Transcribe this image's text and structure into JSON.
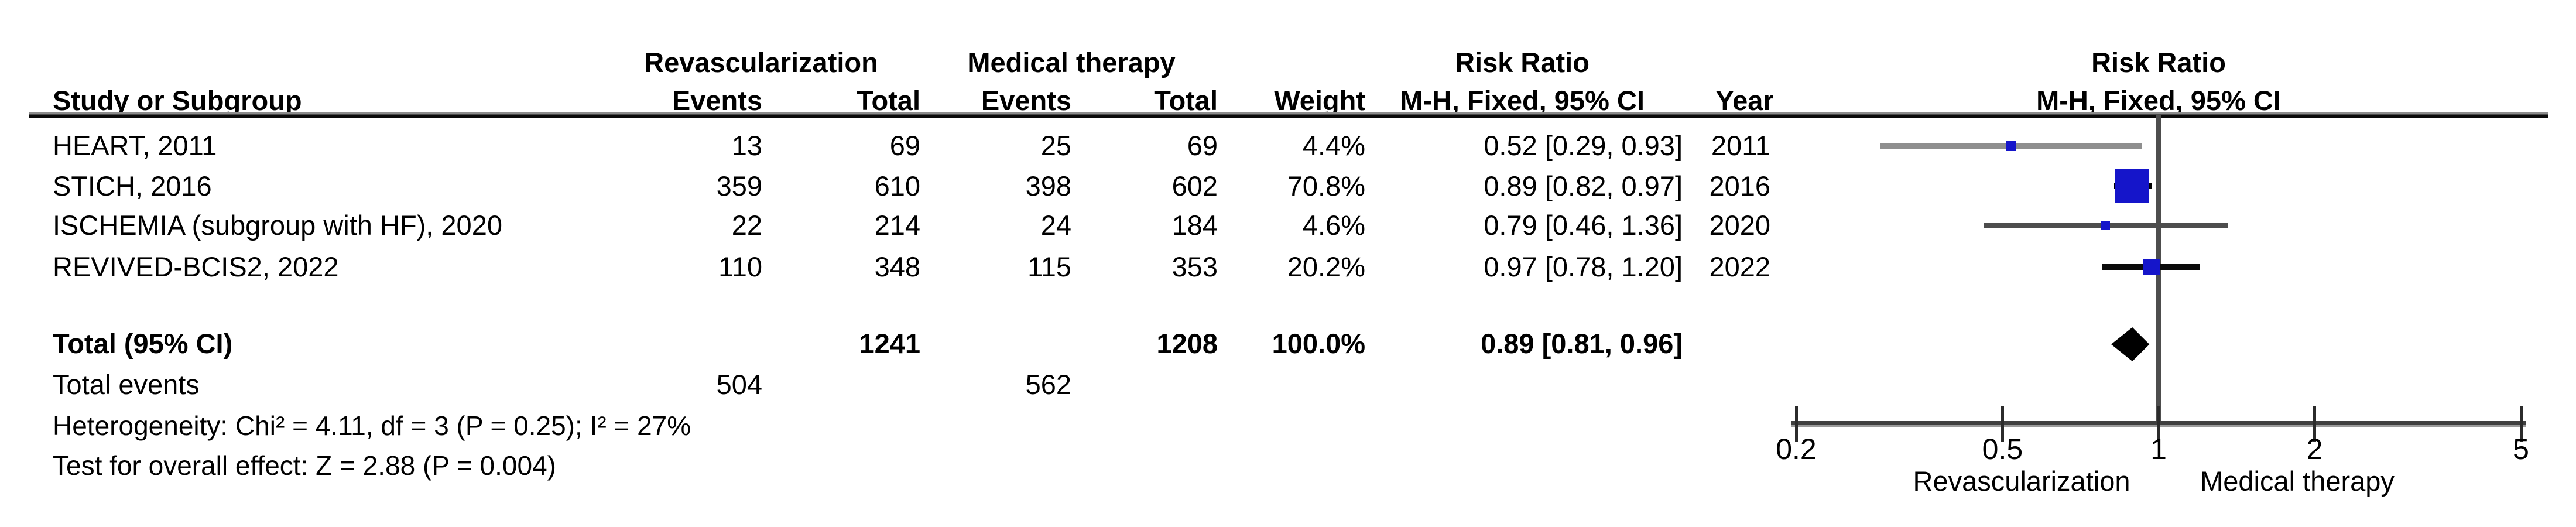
{
  "table": {
    "group_headers": {
      "revascularization": "Revascularization",
      "medical_therapy": "Medical therapy",
      "risk_ratio_table": "Risk Ratio",
      "risk_ratio_plot": "Risk Ratio"
    },
    "column_headers": {
      "study": "Study or Subgroup",
      "rev_events": "Events",
      "rev_total": "Total",
      "med_events": "Events",
      "med_total": "Total",
      "weight": "Weight",
      "method_table": "M-H, Fixed, 95% CI",
      "year": "Year",
      "method_plot": "M-H, Fixed, 95% CI"
    }
  },
  "chart_data": {
    "type": "forest",
    "effect_measure": "Risk Ratio, M-H, Fixed, 95% CI",
    "x_axis": {
      "scale": "log",
      "ticks": [
        0.2,
        0.5,
        1,
        2,
        5
      ],
      "tick_labels": [
        "0.2",
        "0.5",
        "1",
        "2",
        "5"
      ],
      "null_line": 1,
      "left_arm_label": "Revascularization",
      "right_arm_label": "Medical therapy"
    },
    "studies": [
      {
        "study": "HEART, 2011",
        "rev_events": "13",
        "rev_total": "69",
        "med_events": "25",
        "med_total": "69",
        "weight": "4.4%",
        "rr_text": "0.52 [0.29, 0.93]",
        "year": "2011",
        "rr": 0.52,
        "ci_low": 0.29,
        "ci_high": 0.93,
        "weight_pct": 4.4
      },
      {
        "study": "STICH, 2016",
        "rev_events": "359",
        "rev_total": "610",
        "med_events": "398",
        "med_total": "602",
        "weight": "70.8%",
        "rr_text": "0.89 [0.82, 0.97]",
        "year": "2016",
        "rr": 0.89,
        "ci_low": 0.82,
        "ci_high": 0.97,
        "weight_pct": 70.8
      },
      {
        "study": "ISCHEMIA (subgroup with HF), 2020",
        "rev_events": "22",
        "rev_total": "214",
        "med_events": "24",
        "med_total": "184",
        "weight": "4.6%",
        "rr_text": "0.79 [0.46, 1.36]",
        "year": "2020",
        "rr": 0.79,
        "ci_low": 0.46,
        "ci_high": 1.36,
        "weight_pct": 4.6
      },
      {
        "study": "REVIVED-BCIS2, 2022",
        "rev_events": "110",
        "rev_total": "348",
        "med_events": "115",
        "med_total": "353",
        "weight": "20.2%",
        "rr_text": "0.97 [0.78, 1.20]",
        "year": "2022",
        "rr": 0.97,
        "ci_low": 0.78,
        "ci_high": 1.2,
        "weight_pct": 20.2
      }
    ],
    "total": {
      "label": "Total (95% CI)",
      "rev_total": "1241",
      "med_total": "1208",
      "weight": "100.0%",
      "rr_text": "0.89 [0.81, 0.96]",
      "rr": 0.89,
      "ci_low": 0.81,
      "ci_high": 0.96
    },
    "total_events": {
      "label": "Total events",
      "rev": "504",
      "med": "562"
    },
    "heterogeneity": "Heterogeneity: Chi² = 4.11, df = 3 (P = 0.25); I² = 27%",
    "overall_effect": "Test for overall effect: Z = 2.88 (P = 0.004)"
  },
  "colors": {
    "marker_blue": "#1515CA",
    "diamond_black": "#000000",
    "ci_line_colors": [
      "#8f8f8f",
      "#000000",
      "#4d4d4d",
      "#0a0a0a"
    ],
    "axis_gray": "#4d4d4d"
  }
}
